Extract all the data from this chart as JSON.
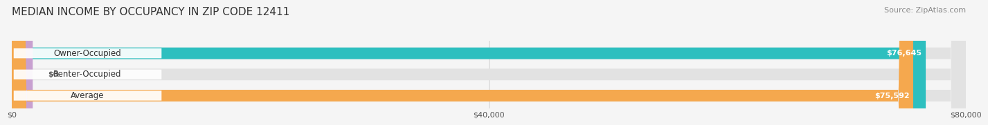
{
  "title": "MEDIAN INCOME BY OCCUPANCY IN ZIP CODE 12411",
  "source": "Source: ZipAtlas.com",
  "categories": [
    "Owner-Occupied",
    "Renter-Occupied",
    "Average"
  ],
  "values": [
    76645,
    0,
    75592
  ],
  "bar_colors": [
    "#2dbfbf",
    "#c8a0d0",
    "#f5a84e"
  ],
  "bar_labels": [
    "$76,645",
    "$0",
    "$75,592"
  ],
  "xlim": [
    0,
    80000
  ],
  "xticks": [
    0,
    40000,
    80000
  ],
  "xtick_labels": [
    "$0",
    "$40,000",
    "$80,000"
  ],
  "background_color": "#f5f5f5",
  "bar_bg_color": "#e2e2e2",
  "label_bg_color": "#ffffff",
  "title_fontsize": 11,
  "source_fontsize": 8,
  "bar_height": 0.55
}
